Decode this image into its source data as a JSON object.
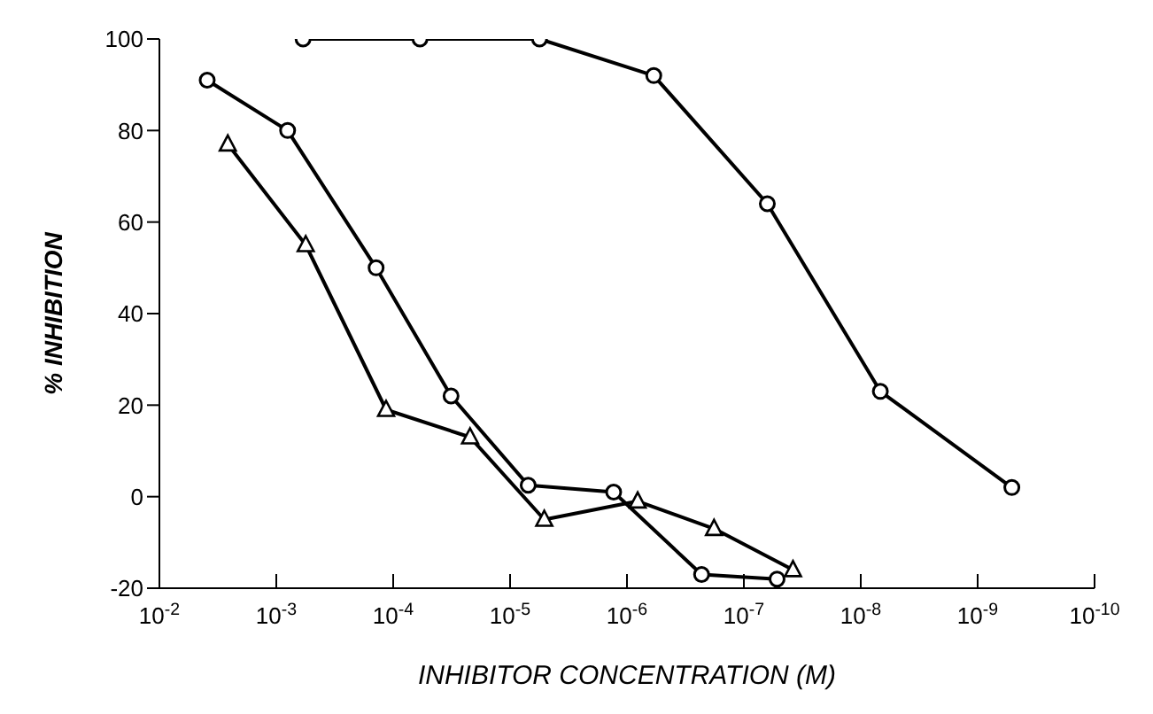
{
  "chart_data": {
    "type": "line",
    "xlabel": "INHIBITOR CONCENTRATION (M)",
    "ylabel": "% INHIBITION",
    "log": "x",
    "grid": false,
    "line_style": "solid",
    "xlim": [
      0.01,
      1e-10
    ],
    "xticks": [
      {
        "value": 0.01,
        "label": "10$^{-2}$"
      },
      {
        "value": 0.001,
        "label": "10$^{-3}$"
      },
      {
        "value": 0.0001,
        "label": "10$^{-4}$"
      },
      {
        "value": 1e-05,
        "label": "10$^{-5}$"
      },
      {
        "value": 1e-06,
        "label": "10$^{-6}$"
      },
      {
        "value": 1e-07,
        "label": "10$^{-7}$"
      },
      {
        "value": 1e-08,
        "label": "10$^{-8}$"
      },
      {
        "value": 1e-09,
        "label": "10$^{-9}$"
      },
      {
        "value": 1e-10,
        "label": "10$^{-10}$"
      }
    ],
    "ylim": [
      -20,
      100
    ],
    "yticks": [
      -20,
      0,
      20,
      40,
      60,
      80,
      100
    ],
    "series": [
      {
        "color": "#000000",
        "marker": "circle",
        "x": [
          0.0039,
          0.0008,
          0.00014,
          3.2e-05,
          7e-06,
          1.3e-06,
          2.3e-07,
          5.2e-08
        ],
        "values": [
          91,
          80,
          50,
          22,
          2.5,
          1,
          -17,
          -18
        ]
      },
      {
        "color": "#000000",
        "marker": "triangle",
        "x": [
          0.0026,
          0.00056,
          0.000115,
          2.2e-05,
          5.1e-06,
          8.1e-07,
          1.8e-07,
          3.8e-08
        ],
        "values": [
          77,
          55,
          19,
          13,
          -5,
          -1,
          -7,
          -16
        ]
      },
      {
        "color": "#000000",
        "marker": "circle",
        "x": [
          0.00059,
          5.9e-05,
          5.6e-06,
          5.9e-07,
          6.3e-08,
          6.8e-09,
          5.1e-10
        ],
        "values": [
          100,
          100,
          100,
          92,
          64,
          23,
          2
        ]
      }
    ]
  }
}
